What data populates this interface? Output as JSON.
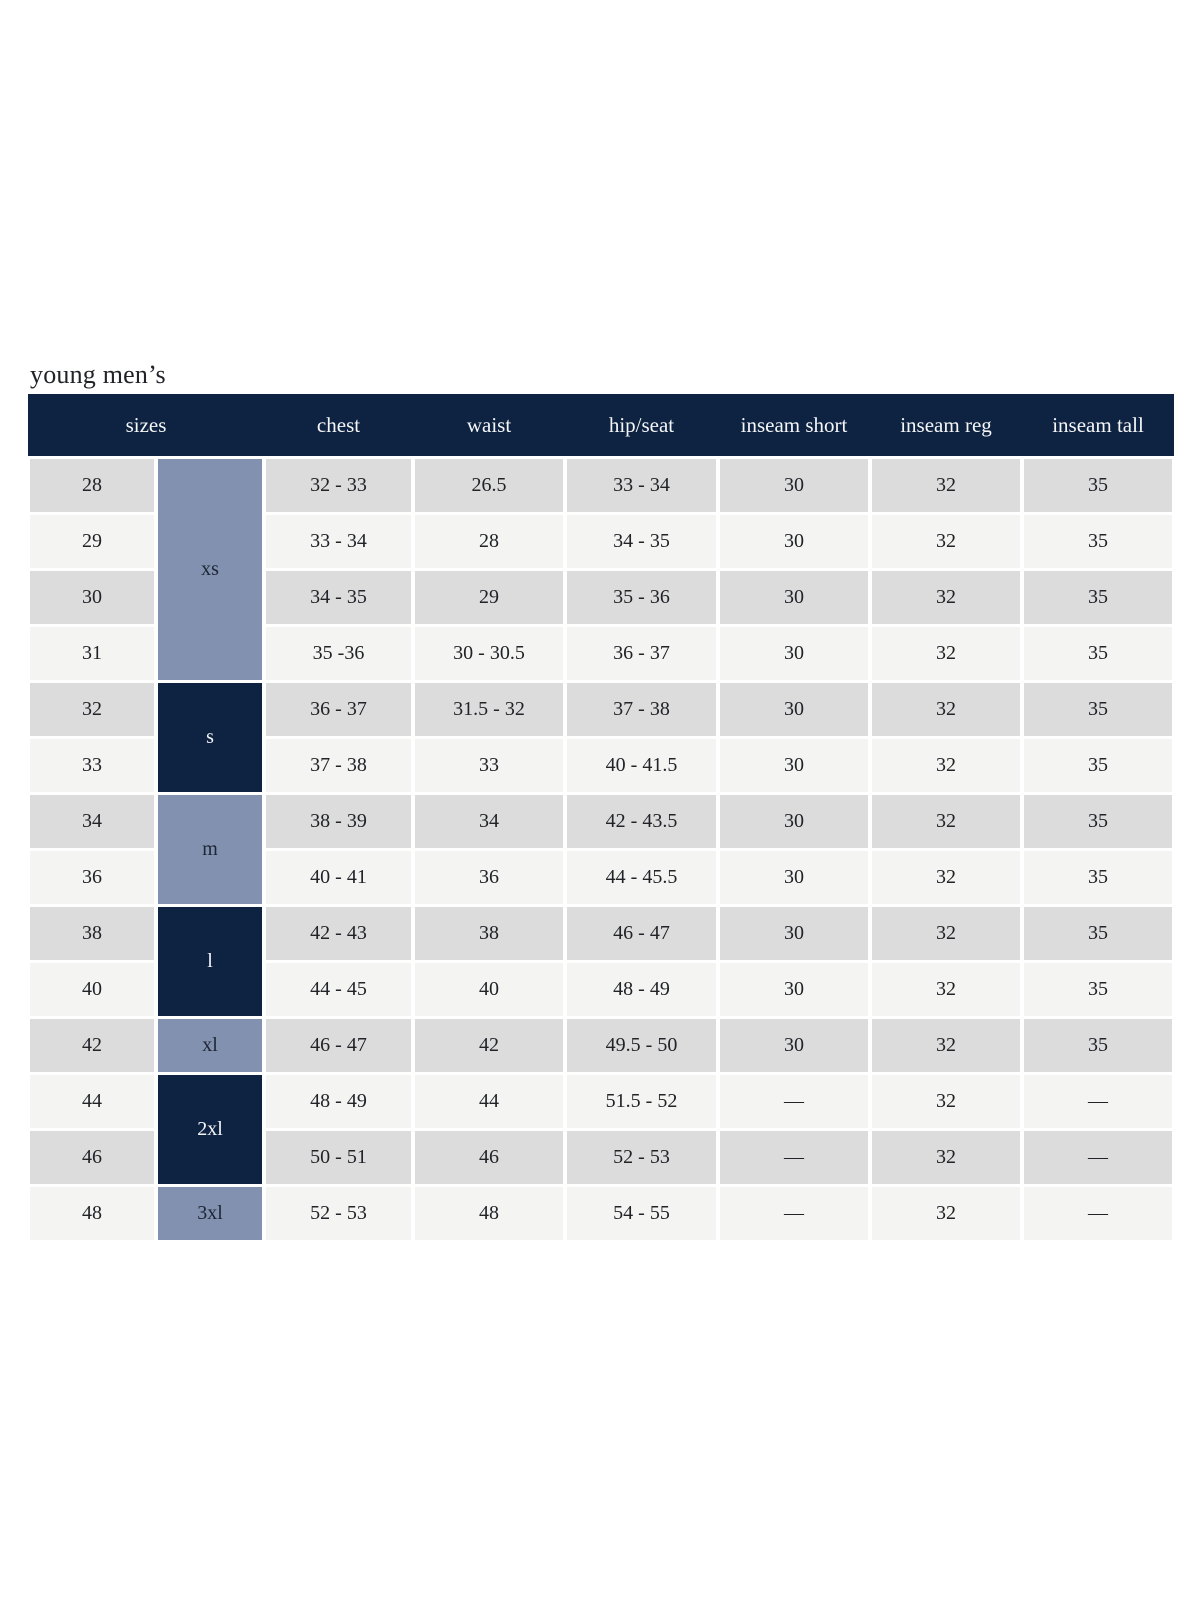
{
  "title": "young men’s",
  "table": {
    "header": {
      "sizes": "sizes",
      "chest": "chest",
      "waist": "waist",
      "hip_seat": "hip/seat",
      "inseam_short": "inseam short",
      "inseam_reg": "inseam reg",
      "inseam_tall": "inseam tall"
    },
    "size_groups": [
      {
        "label": "xs",
        "rows": 4,
        "style": "light"
      },
      {
        "label": "s",
        "rows": 2,
        "style": "dark"
      },
      {
        "label": "m",
        "rows": 2,
        "style": "light"
      },
      {
        "label": "l",
        "rows": 2,
        "style": "dark"
      },
      {
        "label": "xl",
        "rows": 1,
        "style": "light"
      },
      {
        "label": "2xl",
        "rows": 2,
        "style": "dark"
      },
      {
        "label": "3xl",
        "rows": 1,
        "style": "light"
      }
    ],
    "rows": [
      {
        "size": "28",
        "chest": "32 - 33",
        "waist": "26.5",
        "hip_seat": "33 - 34",
        "inseam_short": "30",
        "inseam_reg": "32",
        "inseam_tall": "35"
      },
      {
        "size": "29",
        "chest": "33 - 34",
        "waist": "28",
        "hip_seat": "34 - 35",
        "inseam_short": "30",
        "inseam_reg": "32",
        "inseam_tall": "35"
      },
      {
        "size": "30",
        "chest": "34 - 35",
        "waist": "29",
        "hip_seat": "35 - 36",
        "inseam_short": "30",
        "inseam_reg": "32",
        "inseam_tall": "35"
      },
      {
        "size": "31",
        "chest": "35 -36",
        "waist": "30 - 30.5",
        "hip_seat": "36 - 37",
        "inseam_short": "30",
        "inseam_reg": "32",
        "inseam_tall": "35"
      },
      {
        "size": "32",
        "chest": "36 - 37",
        "waist": "31.5 - 32",
        "hip_seat": "37 - 38",
        "inseam_short": "30",
        "inseam_reg": "32",
        "inseam_tall": "35"
      },
      {
        "size": "33",
        "chest": "37 - 38",
        "waist": "33",
        "hip_seat": "40 - 41.5",
        "inseam_short": "30",
        "inseam_reg": "32",
        "inseam_tall": "35"
      },
      {
        "size": "34",
        "chest": "38 - 39",
        "waist": "34",
        "hip_seat": "42 - 43.5",
        "inseam_short": "30",
        "inseam_reg": "32",
        "inseam_tall": "35"
      },
      {
        "size": "36",
        "chest": "40 - 41",
        "waist": "36",
        "hip_seat": "44 - 45.5",
        "inseam_short": "30",
        "inseam_reg": "32",
        "inseam_tall": "35"
      },
      {
        "size": "38",
        "chest": "42 - 43",
        "waist": "38",
        "hip_seat": "46 - 47",
        "inseam_short": "30",
        "inseam_reg": "32",
        "inseam_tall": "35"
      },
      {
        "size": "40",
        "chest": "44 - 45",
        "waist": "40",
        "hip_seat": "48 - 49",
        "inseam_short": "30",
        "inseam_reg": "32",
        "inseam_tall": "35"
      },
      {
        "size": "42",
        "chest": "46 - 47",
        "waist": "42",
        "hip_seat": "49.5 - 50",
        "inseam_short": "30",
        "inseam_reg": "32",
        "inseam_tall": "35"
      },
      {
        "size": "44",
        "chest": "48 - 49",
        "waist": "44",
        "hip_seat": "51.5 - 52",
        "inseam_short": "—",
        "inseam_reg": "32",
        "inseam_tall": "—"
      },
      {
        "size": "46",
        "chest": "50 - 51",
        "waist": "46",
        "hip_seat": "52 - 53",
        "inseam_short": "—",
        "inseam_reg": "32",
        "inseam_tall": "—"
      },
      {
        "size": "48",
        "chest": "52 - 53",
        "waist": "48",
        "hip_seat": "54 - 55",
        "inseam_short": "—",
        "inseam_reg": "32",
        "inseam_tall": "—"
      }
    ]
  },
  "colors": {
    "navy": "#0e2341",
    "blue_gray": "#8191af",
    "row_odd": "#dcdcdc",
    "row_even": "#f4f4f3",
    "text": "#212328",
    "header_text": "#f5f6f8",
    "group_light_text": "#1e2633"
  }
}
